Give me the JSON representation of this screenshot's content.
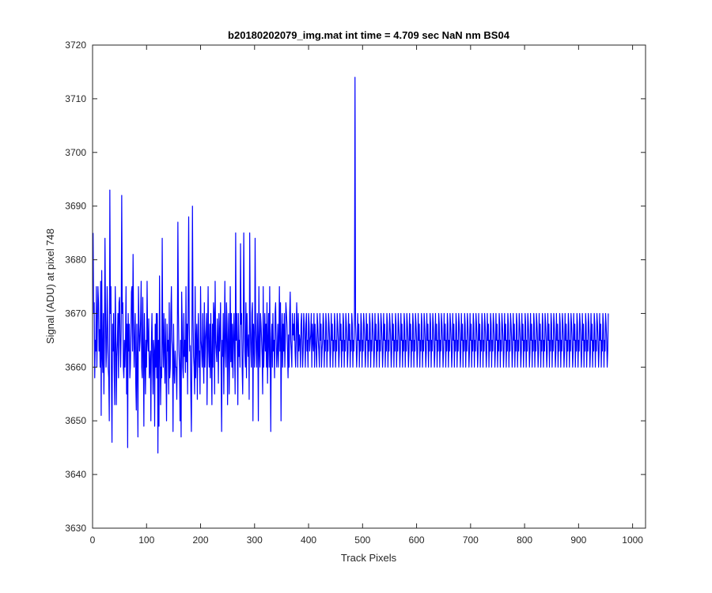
{
  "chart_data": {
    "type": "line",
    "title": "b20180202079_img.mat int time = 4.709 sec  NaN nm BS04",
    "xlabel": "Track Pixels",
    "ylabel": "Signal (ADU) at pixel 748",
    "xlim": [
      0,
      1024
    ],
    "ylim": [
      3630,
      3720
    ],
    "xticks": [
      0,
      100,
      200,
      300,
      400,
      500,
      600,
      700,
      800,
      900,
      1000
    ],
    "yticks": [
      3630,
      3640,
      3650,
      3660,
      3670,
      3680,
      3690,
      3700,
      3710,
      3720
    ],
    "grid": false,
    "series": [
      {
        "color": "#0000ff",
        "x_start": 1,
        "x_step": 1,
        "values": [
          3685,
          3670,
          3672,
          3658,
          3665,
          3663,
          3675,
          3660,
          3668,
          3675,
          3672,
          3663,
          3667,
          3660,
          3676,
          3651,
          3678,
          3662,
          3659,
          3670,
          3655,
          3665,
          3684,
          3670,
          3660,
          3663,
          3675,
          3668,
          3660,
          3658,
          3650,
          3693,
          3670,
          3675,
          3658,
          3646,
          3668,
          3663,
          3670,
          3660,
          3653,
          3675,
          3668,
          3653,
          3662,
          3665,
          3670,
          3658,
          3672,
          3673,
          3665,
          3660,
          3667,
          3692,
          3670,
          3672,
          3660,
          3658,
          3665,
          3660,
          3665,
          3675,
          3655,
          3668,
          3645,
          3670,
          3663,
          3668,
          3658,
          3660,
          3666,
          3674,
          3675,
          3663,
          3681,
          3668,
          3660,
          3665,
          3670,
          3657,
          3652,
          3668,
          3660,
          3647,
          3675,
          3668,
          3663,
          3665,
          3669,
          3676,
          3660,
          3658,
          3673,
          3663,
          3649,
          3670,
          3662,
          3655,
          3665,
          3660,
          3676,
          3665,
          3663,
          3669,
          3658,
          3660,
          3663,
          3650,
          3665,
          3670,
          3662,
          3655,
          3665,
          3663,
          3649,
          3668,
          3660,
          3670,
          3658,
          3670,
          3644,
          3665,
          3649,
          3677,
          3665,
          3653,
          3660,
          3658,
          3684,
          3665,
          3660,
          3670,
          3663,
          3657,
          3669,
          3660,
          3650,
          3668,
          3663,
          3665,
          3655,
          3672,
          3658,
          3660,
          3670,
          3675,
          3665,
          3663,
          3648,
          3668,
          3660,
          3657,
          3663,
          3660,
          3660,
          3654,
          3665,
          3687,
          3670,
          3663,
          3660,
          3650,
          3665,
          3647,
          3674,
          3668,
          3660,
          3658,
          3670,
          3662,
          3665,
          3659,
          3675,
          3661,
          3668,
          3655,
          3672,
          3688,
          3668,
          3663,
          3664,
          3655,
          3648,
          3665,
          3690,
          3670,
          3662,
          3660,
          3655,
          3675,
          3658,
          3665,
          3668,
          3654,
          3665,
          3670,
          3660,
          3663,
          3655,
          3675,
          3665,
          3663,
          3660,
          3670,
          3662,
          3657,
          3672,
          3660,
          3665,
          3667,
          3670,
          3653,
          3665,
          3675,
          3663,
          3660,
          3668,
          3658,
          3670,
          3661,
          3653,
          3668,
          3660,
          3672,
          3670,
          3655,
          3676,
          3665,
          3663,
          3661,
          3669,
          3665,
          3657,
          3670,
          3663,
          3666,
          3672,
          3660,
          3648,
          3665,
          3662,
          3670,
          3655,
          3665,
          3676,
          3663,
          3660,
          3672,
          3668,
          3653,
          3665,
          3670,
          3655,
          3663,
          3675,
          3661,
          3670,
          3660,
          3668,
          3658,
          3665,
          3670,
          3663,
          3655,
          3685,
          3665,
          3670,
          3663,
          3653,
          3670,
          3662,
          3665,
          3660,
          3683,
          3668,
          3670,
          3660,
          3655,
          3665,
          3685,
          3670,
          3663,
          3660,
          3672,
          3658,
          3670,
          3665,
          3662,
          3666,
          3654,
          3685,
          3668,
          3663,
          3660,
          3670,
          3672,
          3650,
          3668,
          3665,
          3660,
          3684,
          3668,
          3663,
          3660,
          3670,
          3665,
          3650,
          3675,
          3663,
          3660,
          3670,
          3668,
          3665,
          3662,
          3655,
          3675,
          3660,
          3665,
          3670,
          3663,
          3668,
          3660,
          3672,
          3657,
          3665,
          3670,
          3660,
          3675,
          3663,
          3648,
          3665,
          3668,
          3660,
          3670,
          3663,
          3665,
          3658,
          3670,
          3672,
          3665,
          3660,
          3663,
          3668,
          3660,
          3665,
          3675,
          3663,
          3672,
          3650,
          3665,
          3670,
          3660,
          3668,
          3663,
          3670,
          3660,
          3665,
          3672,
          3670,
          3668,
          3663,
          3658,
          3666,
          3660,
          3670,
          3674,
          3665,
          3663,
          3660,
          3670,
          3666,
          3668,
          3665,
          3670,
          3663,
          3660,
          3665,
          3672,
          3668,
          3660,
          3670,
          3663,
          3666,
          3665,
          3660,
          3668,
          3670,
          3665,
          3660,
          3663,
          3670,
          3668,
          3665,
          3660,
          3668,
          3670,
          3663,
          3665,
          3660,
          3670,
          3668,
          3663,
          3665,
          3666,
          3670,
          3660,
          3668,
          3665,
          3663,
          3670,
          3660,
          3668,
          3665,
          3663,
          3660,
          3670,
          3668,
          3665,
          3663,
          3660,
          3670,
          3665,
          3668,
          3660,
          3663,
          3665,
          3670,
          3668,
          3660,
          3665,
          3663,
          3670,
          3668,
          3660,
          3665,
          3663,
          3670,
          3668,
          3665,
          3660,
          3663,
          3670,
          3665,
          3668,
          3660,
          3665,
          3663,
          3670,
          3668,
          3660,
          3665,
          3663,
          3670,
          3668,
          3665,
          3660,
          3663,
          3670,
          3665,
          3668,
          3660,
          3665,
          3663,
          3670,
          3668,
          3660,
          3665,
          3663,
          3670,
          3668,
          3665,
          3660,
          3663,
          3670,
          3665,
          3668,
          3660,
          3665,
          3663,
          3670,
          3668,
          3660,
          3665,
          3663,
          3670,
          3714,
          3668,
          3665,
          3660,
          3663,
          3670,
          3665,
          3668,
          3660,
          3665,
          3663,
          3670,
          3668,
          3660,
          3665,
          3663,
          3670,
          3668,
          3665,
          3660,
          3663,
          3670,
          3665,
          3668,
          3660,
          3665,
          3663,
          3670,
          3668,
          3660,
          3665,
          3663,
          3670,
          3668,
          3665,
          3660,
          3663,
          3670,
          3665,
          3668,
          3660,
          3665,
          3663,
          3670,
          3668,
          3660,
          3665,
          3663,
          3670,
          3668,
          3665,
          3660,
          3663,
          3670,
          3665,
          3668,
          3660,
          3665,
          3663,
          3670,
          3668,
          3660,
          3665,
          3663,
          3670,
          3668,
          3665,
          3660,
          3663,
          3670,
          3665,
          3668,
          3660,
          3665,
          3663,
          3670,
          3668,
          3660,
          3665,
          3663,
          3670,
          3668,
          3665,
          3660,
          3663,
          3670,
          3665,
          3668,
          3660,
          3665,
          3663,
          3670,
          3668,
          3660,
          3665,
          3663,
          3670,
          3668,
          3665,
          3660,
          3663,
          3670,
          3665,
          3668,
          3660,
          3665,
          3663,
          3670,
          3668,
          3660,
          3665,
          3663,
          3670,
          3668,
          3665,
          3660,
          3663,
          3670,
          3665,
          3668,
          3660,
          3665,
          3663,
          3670,
          3668,
          3660,
          3665,
          3663,
          3670,
          3668,
          3665,
          3660,
          3663,
          3670,
          3665,
          3668,
          3660,
          3665,
          3663,
          3670,
          3668,
          3660,
          3665,
          3663,
          3670,
          3668,
          3665,
          3660,
          3663,
          3670,
          3665,
          3668,
          3660,
          3665,
          3663,
          3670,
          3668,
          3660,
          3665,
          3663,
          3670,
          3668,
          3665,
          3660,
          3663,
          3670,
          3665,
          3668,
          3660,
          3665,
          3663,
          3670,
          3668,
          3660,
          3665,
          3663,
          3670,
          3668,
          3665,
          3660,
          3663,
          3670,
          3665,
          3668,
          3660,
          3665,
          3663,
          3670,
          3668,
          3660,
          3665,
          3663,
          3670,
          3668,
          3665,
          3660,
          3663,
          3670,
          3665,
          3668,
          3660,
          3665,
          3663,
          3670,
          3668,
          3660,
          3665,
          3663,
          3670,
          3668,
          3665,
          3660,
          3663,
          3670,
          3665,
          3668,
          3660,
          3665,
          3663,
          3670,
          3668,
          3660,
          3665,
          3663,
          3670,
          3668,
          3665,
          3660,
          3663,
          3670,
          3665,
          3668,
          3660,
          3665,
          3663,
          3670,
          3668,
          3660,
          3665,
          3663,
          3670,
          3668,
          3665,
          3660,
          3663,
          3670,
          3665,
          3668,
          3660,
          3665,
          3663,
          3670,
          3668,
          3660,
          3665,
          3663,
          3670,
          3668,
          3665,
          3660,
          3663,
          3670,
          3665,
          3668,
          3660,
          3665,
          3663,
          3670,
          3668,
          3660,
          3665,
          3663,
          3670,
          3668,
          3665,
          3660,
          3663,
          3670,
          3665,
          3668,
          3660,
          3665,
          3663,
          3670,
          3668,
          3660,
          3665,
          3663,
          3670,
          3668,
          3665,
          3660,
          3663,
          3670,
          3665,
          3668,
          3660,
          3665,
          3663,
          3670,
          3668,
          3660,
          3665,
          3663,
          3670,
          3668,
          3665,
          3660,
          3663,
          3670,
          3665,
          3668,
          3660,
          3665,
          3663,
          3670,
          3668,
          3660,
          3665,
          3663,
          3670,
          3668,
          3665,
          3660,
          3663,
          3670,
          3665,
          3668,
          3660,
          3665,
          3663,
          3670,
          3668,
          3660,
          3665,
          3663,
          3670,
          3668,
          3665,
          3660,
          3663,
          3670,
          3665,
          3668,
          3660,
          3665,
          3663,
          3670,
          3668,
          3660,
          3665,
          3663,
          3670,
          3668,
          3665,
          3660,
          3663,
          3670,
          3665,
          3668,
          3660,
          3665,
          3663,
          3670,
          3668,
          3660,
          3665,
          3663,
          3670,
          3668,
          3665,
          3660,
          3663,
          3670,
          3665,
          3668,
          3660,
          3665,
          3663,
          3670,
          3668,
          3660,
          3665,
          3663,
          3670,
          3668,
          3665,
          3660,
          3663,
          3670,
          3665,
          3668,
          3660,
          3665,
          3663,
          3670,
          3668,
          3660,
          3665,
          3663,
          3670,
          3668,
          3665,
          3660,
          3663,
          3670,
          3665,
          3668,
          3660,
          3665,
          3663,
          3670,
          3668,
          3660,
          3665,
          3663,
          3670,
          3668,
          3665,
          3660,
          3663,
          3670,
          3665,
          3668,
          3660,
          3665,
          3663,
          3670,
          3668,
          3660,
          3665,
          3663,
          3670,
          3668,
          3665,
          3660,
          3663,
          3670,
          3665,
          3668,
          3660,
          3665,
          3663,
          3670,
          3668,
          3660,
          3665,
          3663,
          3670,
          3668,
          3665,
          3660,
          3663,
          3670,
          3665,
          3668,
          3660,
          3665,
          3663,
          3670,
          3668,
          3660,
          3665,
          3663,
          3670,
          3668,
          3665,
          3660,
          3663,
          3670
        ]
      }
    ]
  }
}
